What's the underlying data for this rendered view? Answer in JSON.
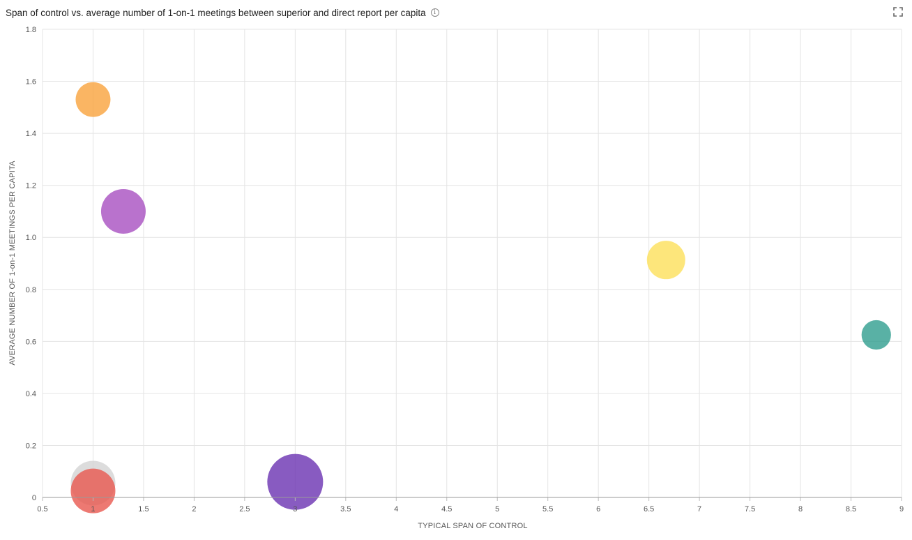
{
  "header": {
    "title": "Span of control vs. average number of 1-on-1 meetings between superior and direct report per capita",
    "info_icon": "info-icon",
    "expand_icon": "expand-icon"
  },
  "chart_data": {
    "type": "scatter",
    "title": "Span of control vs. average number of 1-on-1 meetings between superior and direct report per capita",
    "xlabel": "TYPICAL SPAN OF CONTROL",
    "ylabel": "AVERAGE NUMBER OF 1-on-1 MEETINGS PER CAPITA",
    "xlim": [
      0.5,
      9
    ],
    "ylim": [
      0,
      1.8
    ],
    "x_ticks": [
      "0.5",
      "1",
      "1.5",
      "2",
      "2.5",
      "3",
      "3.5",
      "4",
      "4.5",
      "5",
      "5.5",
      "6",
      "6.5",
      "7",
      "7.5",
      "8",
      "8.5",
      "9"
    ],
    "y_ticks": [
      "0",
      "0.2",
      "0.4",
      "0.6",
      "0.8",
      "1.0",
      "1.2",
      "1.4",
      "1.6",
      "1.8"
    ],
    "grid": true,
    "legend": "none",
    "points": [
      {
        "x": 1.0,
        "y": 0.055,
        "size": 1.0,
        "color": "#d3d3d3"
      },
      {
        "x": 1.0,
        "y": 0.025,
        "size": 1.0,
        "color": "#e8574f"
      },
      {
        "x": 1.0,
        "y": 1.53,
        "size": 0.78,
        "color": "#f9a33c"
      },
      {
        "x": 1.3,
        "y": 1.1,
        "size": 1.0,
        "color": "#a84fc1"
      },
      {
        "x": 3.0,
        "y": 0.06,
        "size": 1.25,
        "color": "#6a32b2"
      },
      {
        "x": 6.67,
        "y": 0.913,
        "size": 0.86,
        "color": "#fde05a"
      },
      {
        "x": 8.75,
        "y": 0.625,
        "size": 0.66,
        "color": "#2f9d8f"
      }
    ]
  }
}
